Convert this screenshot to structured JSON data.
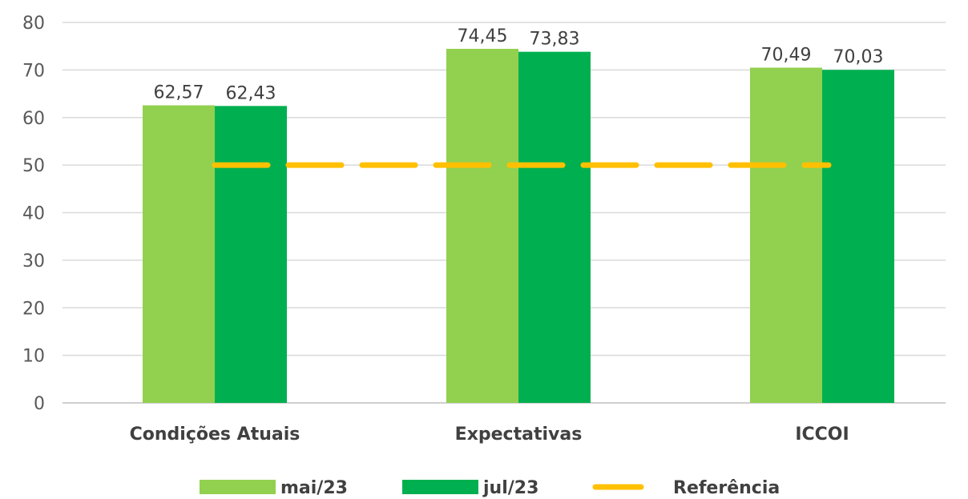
{
  "chart_data": {
    "type": "bar",
    "categories": [
      "Condições Atuais",
      "Expectativas",
      "ICCOI"
    ],
    "series": [
      {
        "name": "mai/23",
        "values": [
          62.57,
          74.45,
          70.49
        ],
        "labels": [
          "62,57",
          "74,45",
          "70,49"
        ],
        "color": "#92D050"
      },
      {
        "name": "jul/23",
        "values": [
          62.43,
          73.83,
          70.03
        ],
        "labels": [
          "62,43",
          "73,83",
          "70,03"
        ],
        "color": "#00B050"
      }
    ],
    "reference_line": {
      "name": "Referência",
      "value": 50,
      "color": "#FFC000",
      "style": "dashed"
    },
    "yticks": [
      0,
      10,
      20,
      30,
      40,
      50,
      60,
      70,
      80
    ],
    "ylim": [
      0,
      80
    ],
    "grid": true,
    "legend": "bottom",
    "title": "",
    "xlabel": "",
    "ylabel": ""
  }
}
